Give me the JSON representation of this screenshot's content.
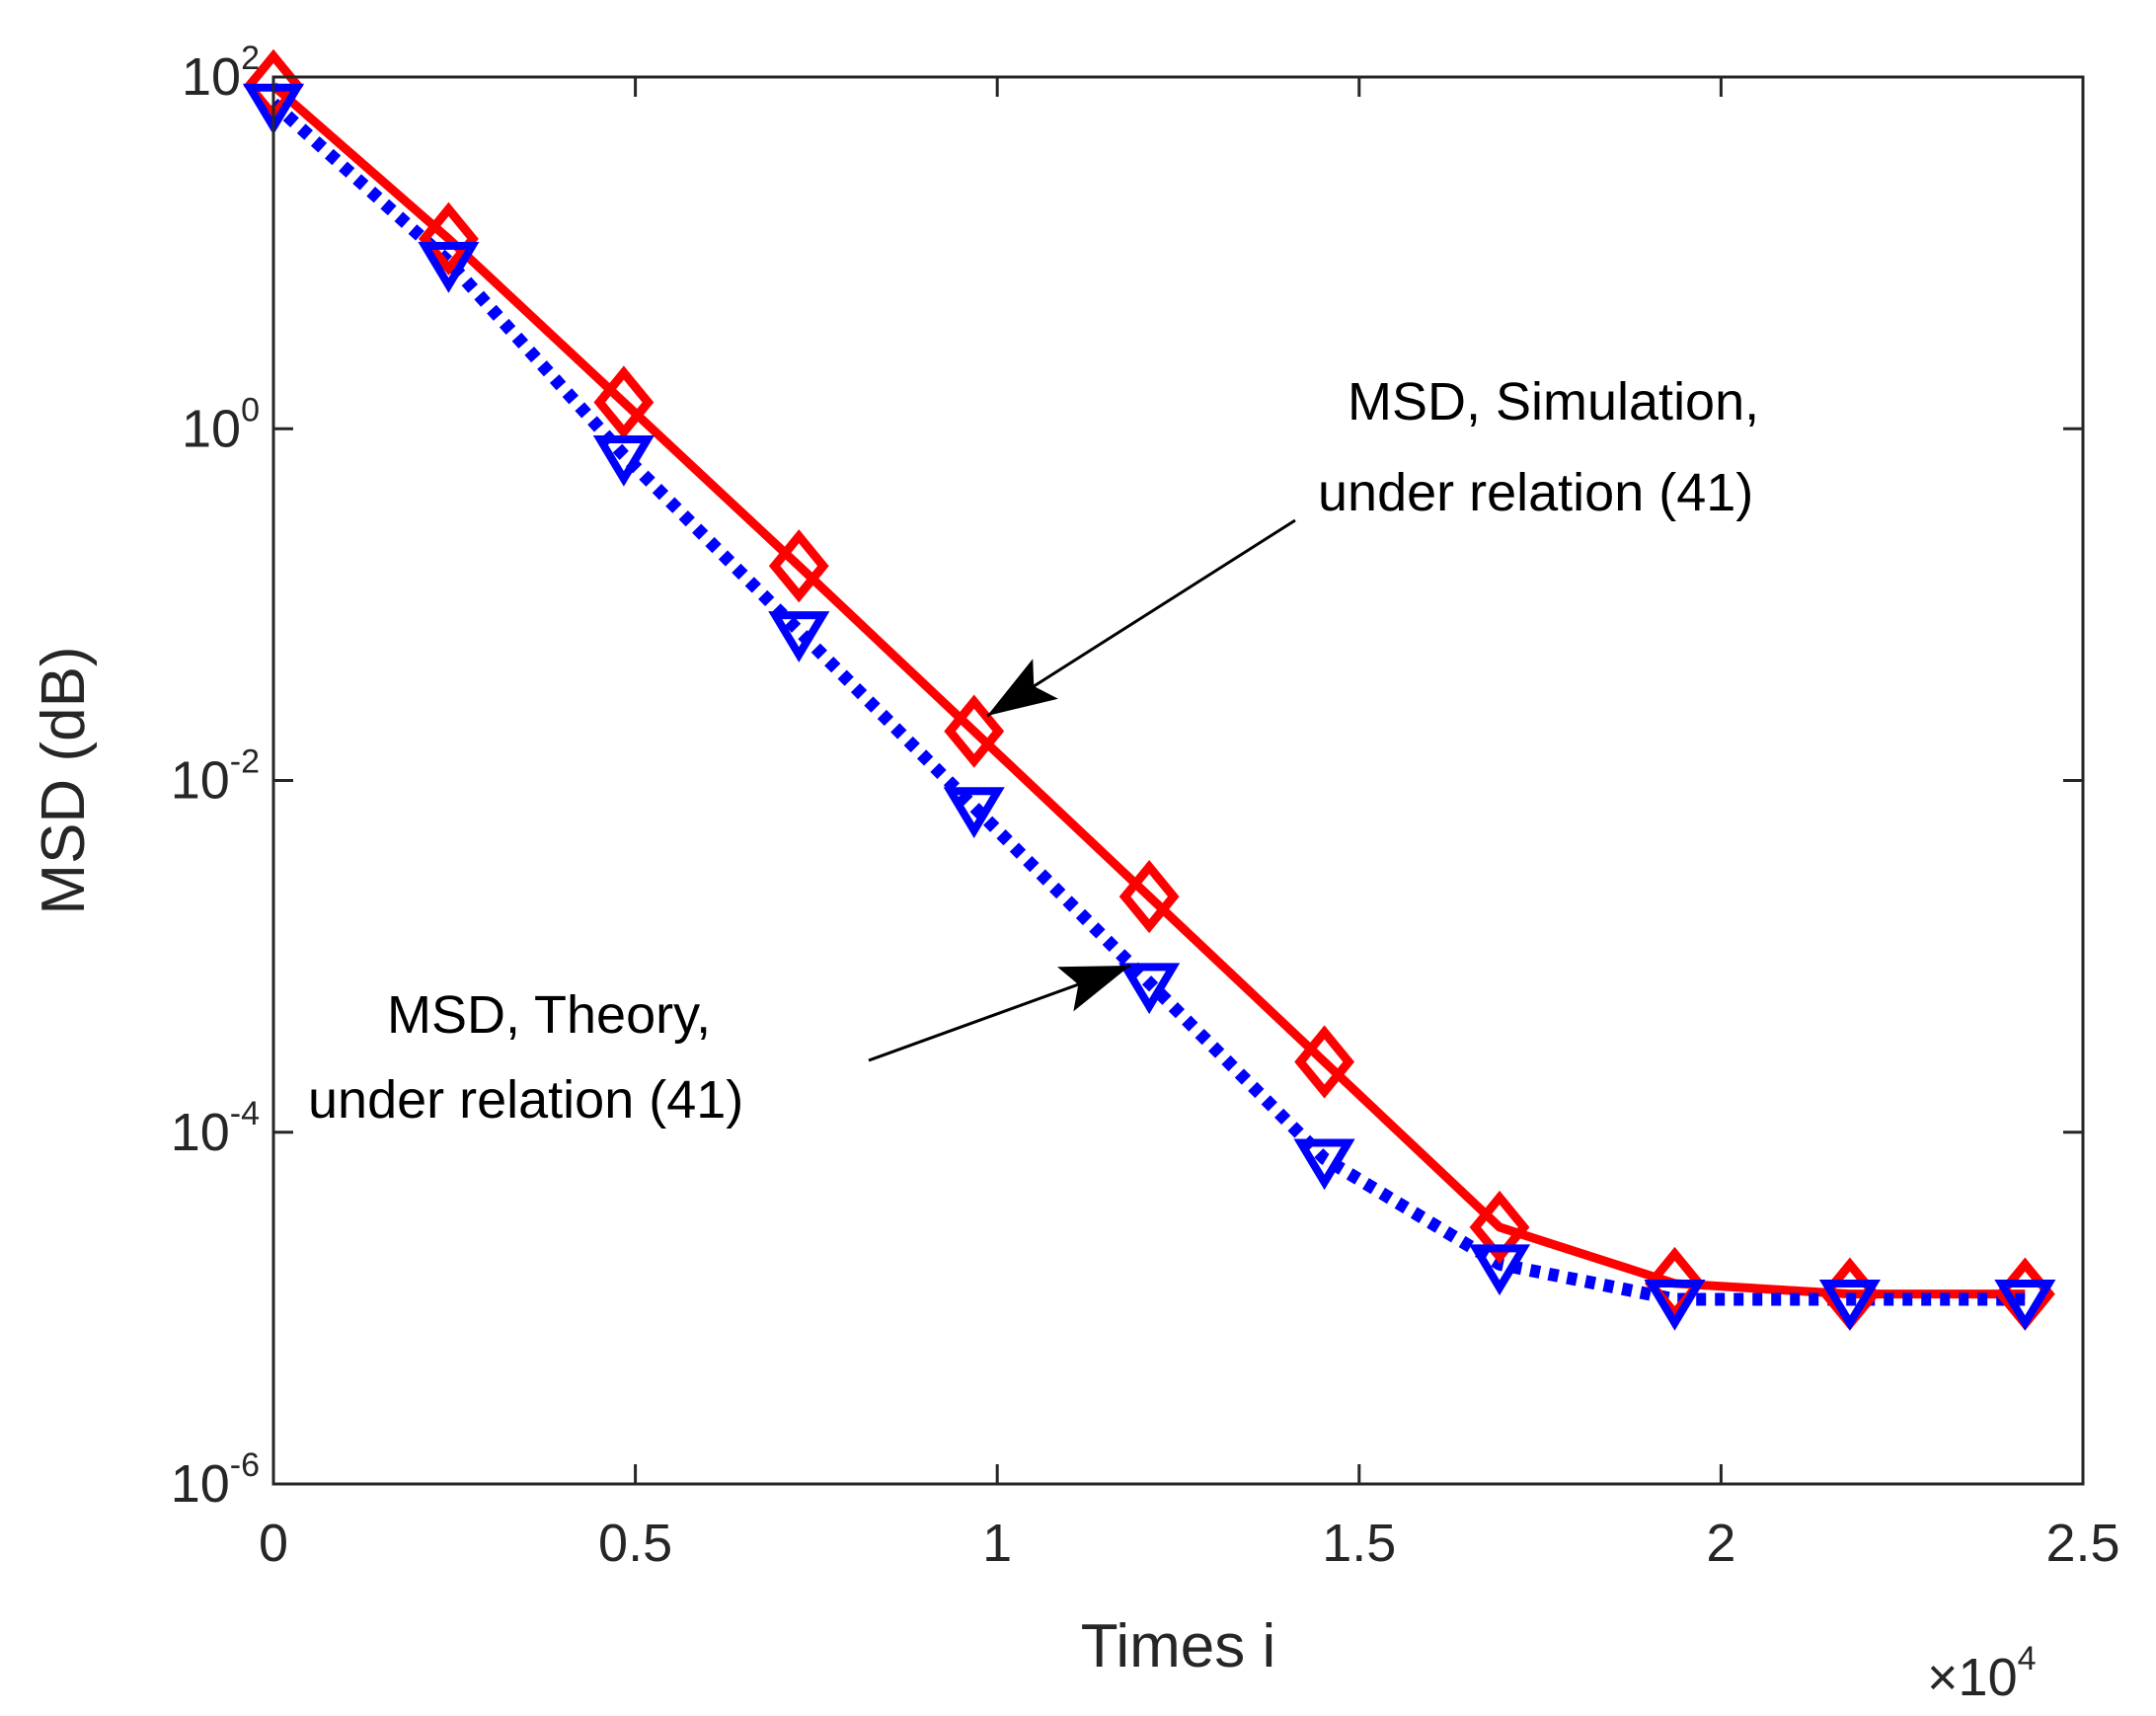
{
  "chart_data": {
    "type": "line",
    "xlabel": "Times i",
    "ylabel": "MSD (dB)",
    "x_multiplier": {
      "prefix": "×10",
      "exponent": "4"
    },
    "xlim": [
      0,
      2.5
    ],
    "ylim_log10": [
      -6,
      2
    ],
    "y_scale": "log",
    "grid": false,
    "x_ticks": [
      "0",
      "0.5",
      "1",
      "1.5",
      "2",
      "2.5"
    ],
    "x_tick_values": [
      0,
      0.5,
      1,
      1.5,
      2,
      2.5
    ],
    "y_ticks": [
      {
        "base": "10",
        "exp": "2",
        "log": 2
      },
      {
        "base": "10",
        "exp": "0",
        "log": 0
      },
      {
        "base": "10",
        "exp": "-2",
        "log": -2
      },
      {
        "base": "10",
        "exp": "-4",
        "log": -4
      },
      {
        "base": "10",
        "exp": "-6",
        "log": -6
      }
    ],
    "series": [
      {
        "name": "MSD, Simulation, under relation (41)",
        "color": "#ff0000",
        "line": "solid",
        "marker": "diamond",
        "x": [
          0,
          0.242,
          0.484,
          0.726,
          0.968,
          1.21,
          1.452,
          1.694,
          1.936,
          2.178,
          2.42
        ],
        "y_log10": [
          1.95,
          1.08,
          0.15,
          -0.78,
          -1.72,
          -2.66,
          -3.6,
          -4.54,
          -4.86,
          -4.92,
          -4.92
        ]
      },
      {
        "name": "MSD, Theory, under relation (41)",
        "color": "#0000ff",
        "line": "dotted",
        "marker": "triangle-down",
        "x": [
          0,
          0.242,
          0.484,
          0.726,
          0.968,
          1.21,
          1.452,
          1.694,
          1.936,
          2.178,
          2.42
        ],
        "y_log10": [
          1.85,
          0.95,
          -0.15,
          -1.15,
          -2.15,
          -3.15,
          -4.15,
          -4.75,
          -4.95,
          -4.95,
          -4.95
        ]
      }
    ],
    "annotations": [
      {
        "lines": [
          "MSD, Simulation,",
          "under relation (41)"
        ],
        "target_series": 0
      },
      {
        "lines": [
          "MSD,  Theory,",
          "under relation  (41)"
        ],
        "target_series": 1
      }
    ]
  }
}
